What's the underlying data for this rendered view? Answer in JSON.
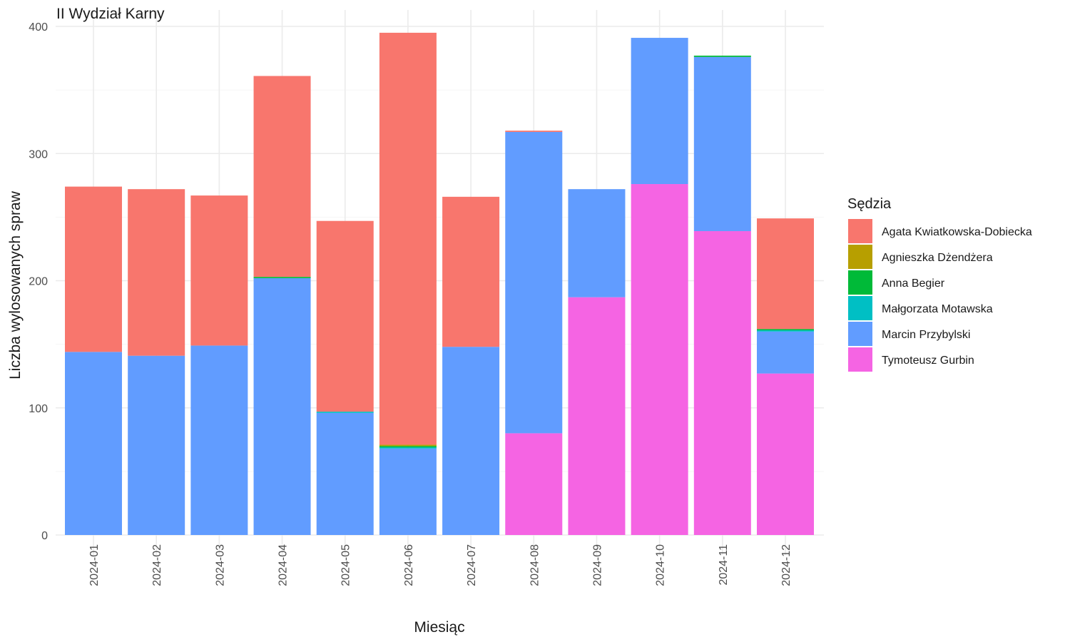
{
  "chart_data": {
    "type": "bar",
    "stacked": true,
    "title": "II Wydział Karny",
    "xlabel": "Miesiąc",
    "ylabel": "Liczba wylosowanych spraw",
    "ylim": [
      0,
      400
    ],
    "yticks": [
      0,
      100,
      200,
      300,
      400
    ],
    "grid": true,
    "legend": {
      "title": "Sędzia",
      "position": "right"
    },
    "categories": [
      "2024-01",
      "2024-02",
      "2024-03",
      "2024-04",
      "2024-05",
      "2024-06",
      "2024-07",
      "2024-08",
      "2024-09",
      "2024-10",
      "2024-11",
      "2024-12"
    ],
    "series": [
      {
        "name": "Tymoteusz Gurbin",
        "color": "#F564E3",
        "values": [
          0,
          0,
          0,
          0,
          0,
          0,
          0,
          80,
          187,
          276,
          239,
          127
        ]
      },
      {
        "name": "Marcin Przybylski",
        "color": "#619CFF",
        "values": [
          144,
          141,
          149,
          202,
          96,
          68,
          148,
          237,
          85,
          115,
          137,
          33
        ]
      },
      {
        "name": "Małgorzata Motawska",
        "color": "#00BFC4",
        "values": [
          0,
          0,
          0,
          0,
          1,
          1,
          0,
          0,
          0,
          0,
          0,
          1
        ]
      },
      {
        "name": "Anna Begier",
        "color": "#00BA38",
        "values": [
          0,
          0,
          0,
          1,
          0,
          1,
          0,
          0,
          0,
          0,
          1,
          1
        ]
      },
      {
        "name": "Agnieszka Dżendżera",
        "color": "#B79F00",
        "values": [
          0,
          0,
          0,
          0,
          0,
          1,
          0,
          0,
          0,
          0,
          0,
          0
        ]
      },
      {
        "name": "Agata Kwiatkowska-Dobiecka",
        "color": "#F8766D",
        "values": [
          130,
          131,
          118,
          158,
          150,
          324,
          118,
          1,
          0,
          0,
          0,
          87
        ]
      }
    ],
    "legend_order": [
      "Agata Kwiatkowska-Dobiecka",
      "Agnieszka Dżendżera",
      "Anna Begier",
      "Małgorzata Motawska",
      "Marcin Przybylski",
      "Tymoteusz Gurbin"
    ]
  }
}
